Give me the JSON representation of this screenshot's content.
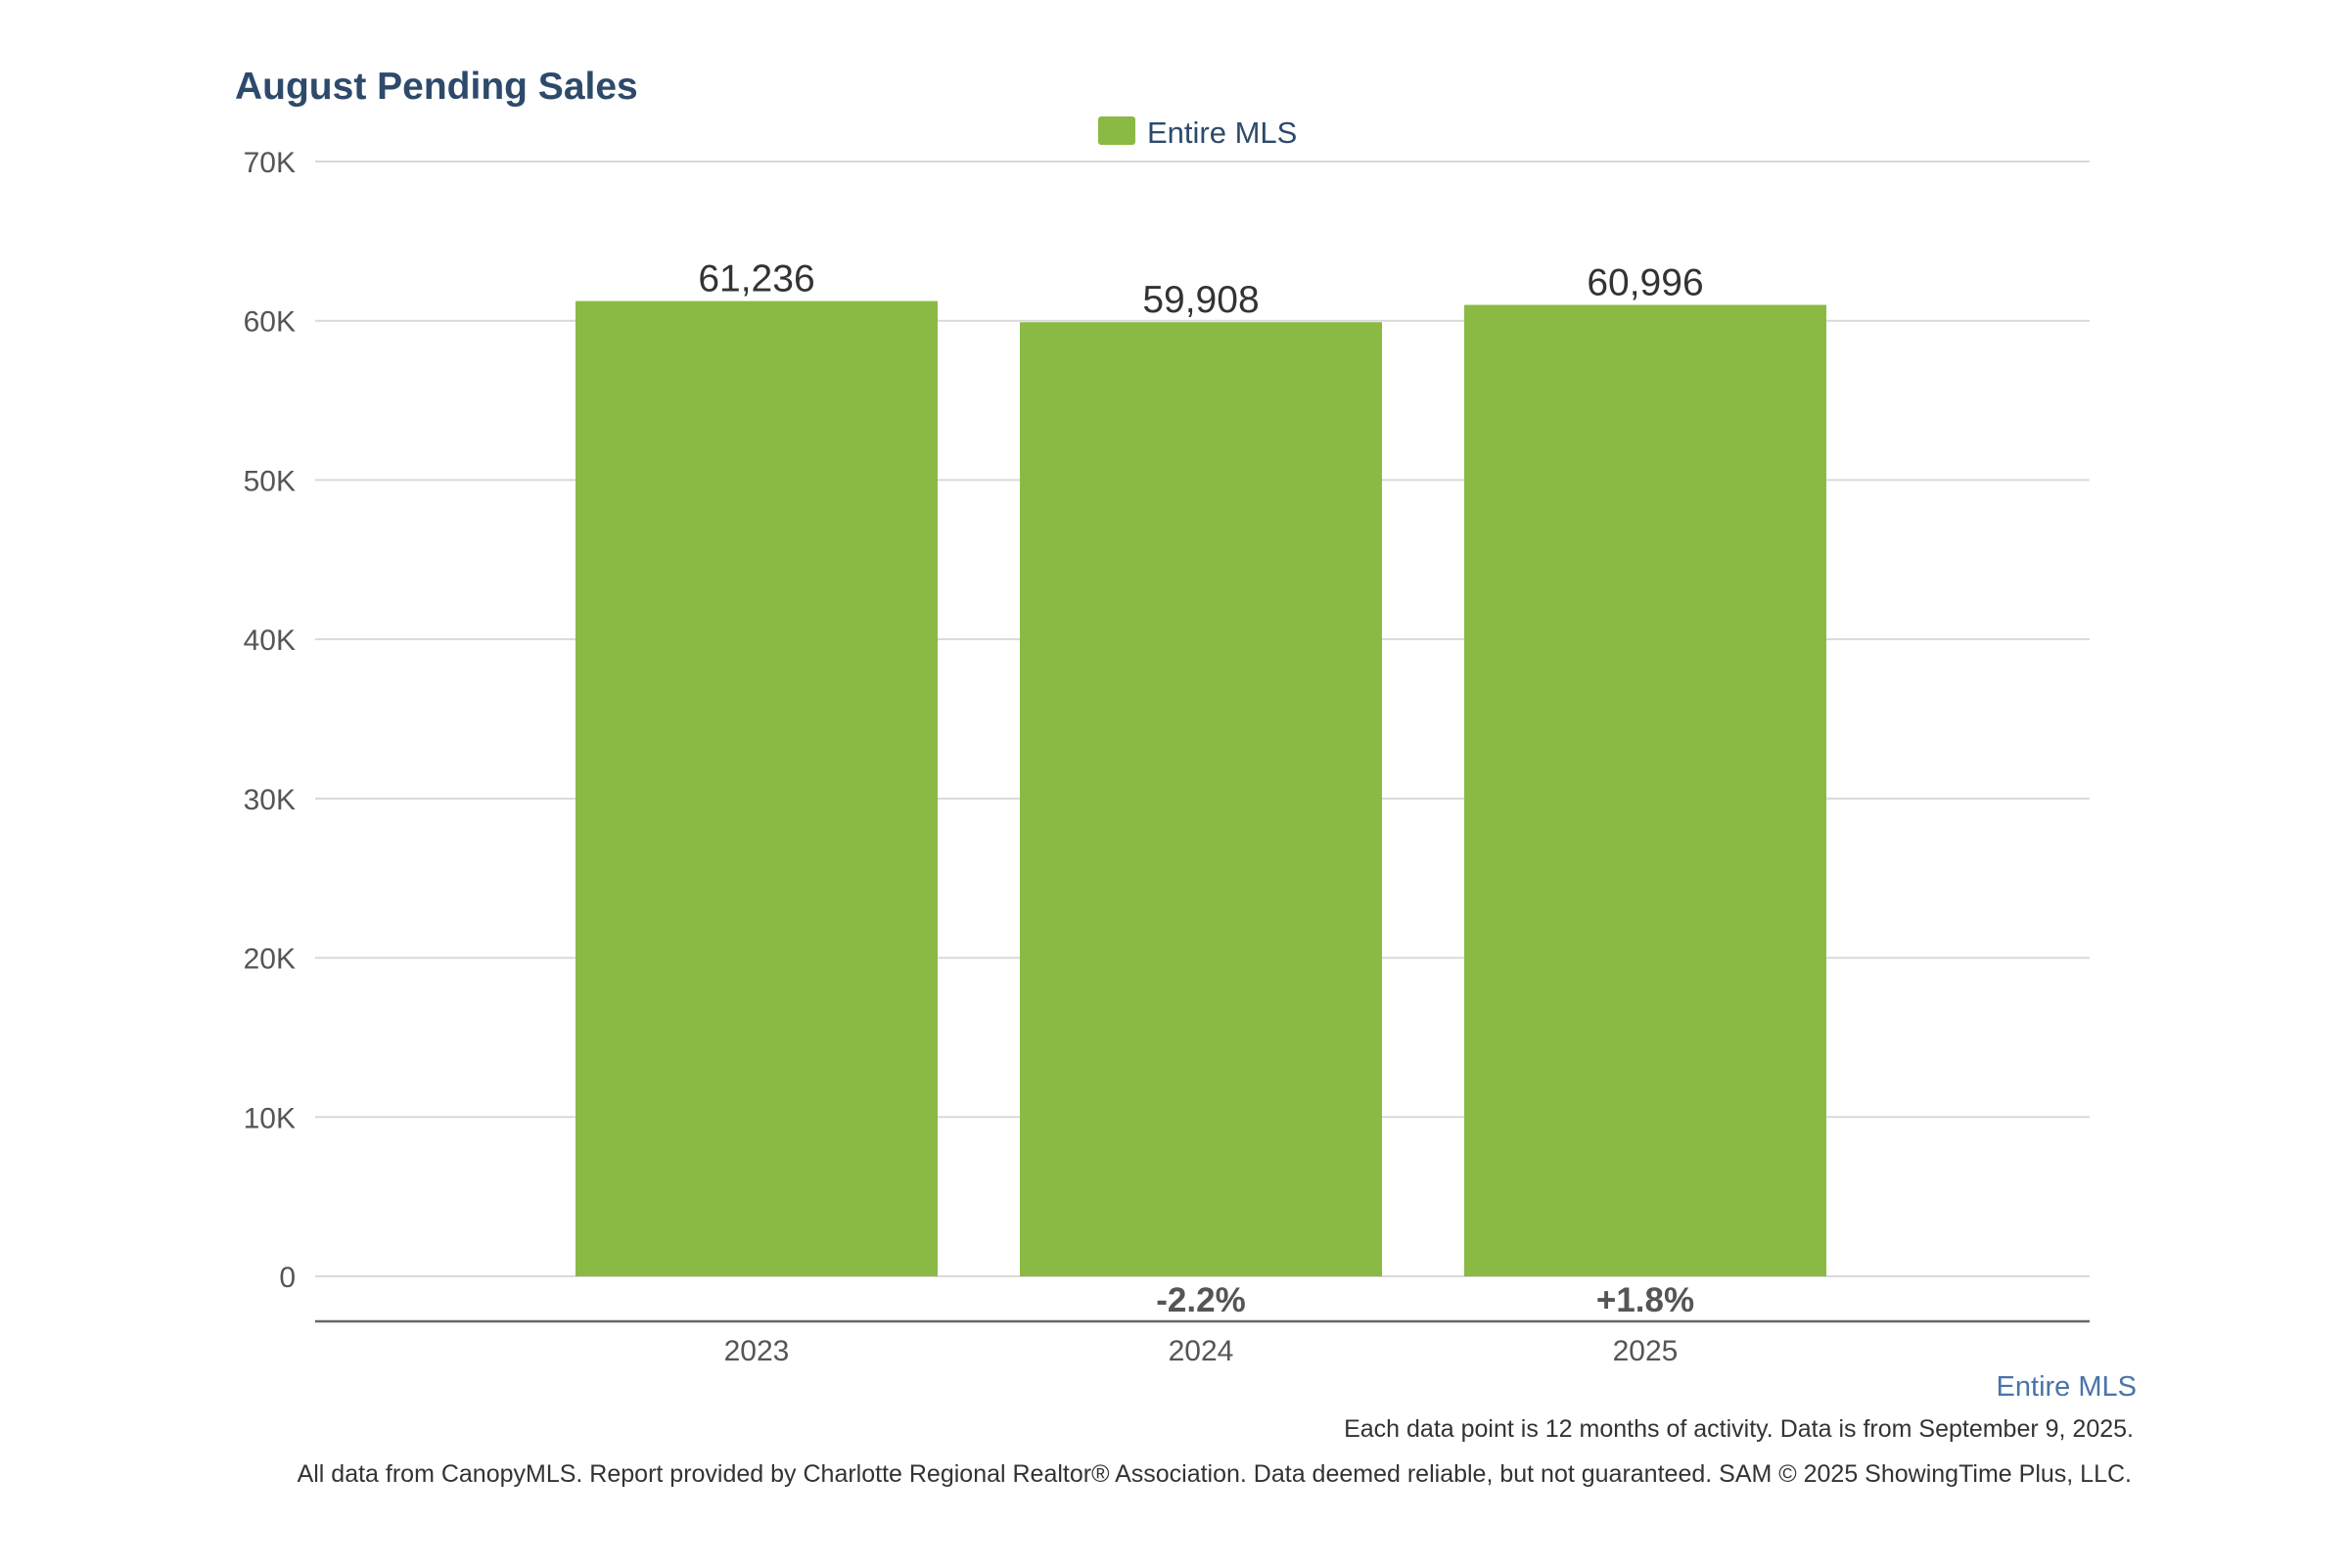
{
  "chart_data": {
    "type": "bar",
    "title": "August Pending Sales",
    "categories": [
      "2023",
      "2024",
      "2025"
    ],
    "series": [
      {
        "name": "Entire MLS",
        "values": [
          61236,
          59908,
          60996
        ],
        "value_labels": [
          "61,236",
          "59,908",
          "60,996"
        ],
        "color": "#8aba43"
      }
    ],
    "changes": [
      "",
      "-2.2%",
      "+1.8%"
    ],
    "ylim": [
      0,
      70000
    ],
    "yticks": [
      0,
      10000,
      20000,
      30000,
      40000,
      50000,
      60000,
      70000
    ],
    "ytick_labels": [
      "0",
      "10K",
      "20K",
      "30K",
      "40K",
      "50K",
      "60K",
      "70K"
    ],
    "xlabel": "",
    "ylabel": "",
    "grid": true,
    "legend_position": "top-center"
  },
  "series_note": "Entire MLS",
  "footnote_1": "Each data point is 12 months of activity. Data is from September 9, 2025.",
  "footnote_2": "All data from CanopyMLS. Report provided by Charlotte Regional Realtor® Association. Data deemed reliable, but not guaranteed. SAM © 2025 ShowingTime Plus, LLC."
}
